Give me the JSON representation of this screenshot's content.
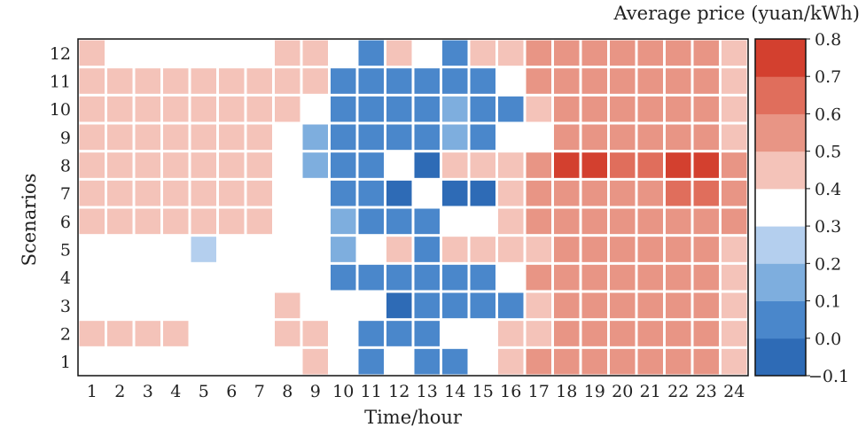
{
  "chart_data": {
    "type": "heatmap",
    "title": "",
    "xlabel": "Time/hour",
    "ylabel": "Scenarios",
    "colorbar_label": "Average price (yuan/kWh)",
    "x_categories": [
      "1",
      "2",
      "3",
      "4",
      "5",
      "6",
      "7",
      "8",
      "9",
      "10",
      "11",
      "12",
      "13",
      "14",
      "15",
      "16",
      "17",
      "18",
      "19",
      "20",
      "21",
      "22",
      "23",
      "24"
    ],
    "y_categories": [
      "12",
      "11",
      "10",
      "9",
      "8",
      "7",
      "6",
      "5",
      "4",
      "3",
      "2",
      "1"
    ],
    "values": [
      [
        0.45,
        0.35,
        0.35,
        0.35,
        0.35,
        0.35,
        0.35,
        0.45,
        0.45,
        0.35,
        0.05,
        0.45,
        0.35,
        0.05,
        0.45,
        0.45,
        0.55,
        0.55,
        0.55,
        0.55,
        0.55,
        0.55,
        0.55,
        0.45
      ],
      [
        0.45,
        0.45,
        0.45,
        0.45,
        0.45,
        0.45,
        0.45,
        0.45,
        0.45,
        0.05,
        0.05,
        0.05,
        0.05,
        0.05,
        0.05,
        0.35,
        0.55,
        0.55,
        0.55,
        0.55,
        0.55,
        0.55,
        0.55,
        0.45
      ],
      [
        0.45,
        0.45,
        0.45,
        0.45,
        0.45,
        0.45,
        0.45,
        0.45,
        0.35,
        0.05,
        0.05,
        0.05,
        0.05,
        0.15,
        0.05,
        0.05,
        0.45,
        0.55,
        0.55,
        0.55,
        0.55,
        0.55,
        0.55,
        0.45
      ],
      [
        0.45,
        0.45,
        0.45,
        0.45,
        0.45,
        0.45,
        0.45,
        0.35,
        0.15,
        0.05,
        0.05,
        0.05,
        0.05,
        0.15,
        0.05,
        0.35,
        0.35,
        0.55,
        0.55,
        0.55,
        0.55,
        0.55,
        0.55,
        0.45
      ],
      [
        0.45,
        0.45,
        0.45,
        0.45,
        0.45,
        0.45,
        0.45,
        0.35,
        0.15,
        0.05,
        0.05,
        0.35,
        -0.05,
        0.45,
        0.45,
        0.45,
        0.55,
        0.75,
        0.75,
        0.65,
        0.65,
        0.75,
        0.75,
        0.55
      ],
      [
        0.45,
        0.45,
        0.45,
        0.45,
        0.45,
        0.45,
        0.45,
        0.35,
        0.35,
        0.05,
        0.05,
        -0.05,
        0.35,
        -0.05,
        -0.05,
        0.45,
        0.55,
        0.55,
        0.55,
        0.55,
        0.55,
        0.65,
        0.65,
        0.55
      ],
      [
        0.45,
        0.45,
        0.45,
        0.45,
        0.45,
        0.45,
        0.45,
        0.35,
        0.35,
        0.15,
        0.05,
        0.05,
        0.05,
        0.35,
        0.35,
        0.45,
        0.55,
        0.55,
        0.55,
        0.55,
        0.55,
        0.55,
        0.55,
        0.55
      ],
      [
        0.35,
        0.35,
        0.35,
        0.35,
        0.25,
        0.35,
        0.35,
        0.35,
        0.35,
        0.15,
        0.35,
        0.45,
        0.05,
        0.45,
        0.45,
        0.45,
        0.45,
        0.55,
        0.55,
        0.55,
        0.55,
        0.55,
        0.55,
        0.45
      ],
      [
        0.35,
        0.35,
        0.35,
        0.35,
        0.35,
        0.35,
        0.35,
        0.35,
        0.35,
        0.05,
        0.05,
        0.05,
        0.05,
        0.05,
        0.05,
        0.35,
        0.55,
        0.55,
        0.55,
        0.55,
        0.55,
        0.55,
        0.55,
        0.45
      ],
      [
        0.35,
        0.35,
        0.35,
        0.35,
        0.35,
        0.35,
        0.35,
        0.45,
        0.35,
        0.35,
        0.35,
        -0.05,
        0.05,
        0.05,
        0.05,
        0.05,
        0.45,
        0.55,
        0.55,
        0.55,
        0.55,
        0.55,
        0.55,
        0.45
      ],
      [
        0.45,
        0.45,
        0.45,
        0.45,
        0.35,
        0.35,
        0.35,
        0.45,
        0.45,
        0.35,
        0.05,
        0.05,
        0.05,
        0.35,
        0.35,
        0.45,
        0.45,
        0.55,
        0.55,
        0.55,
        0.55,
        0.55,
        0.55,
        0.45
      ],
      [
        0.35,
        0.35,
        0.35,
        0.35,
        0.35,
        0.35,
        0.35,
        0.35,
        0.45,
        0.35,
        0.05,
        0.35,
        0.05,
        0.05,
        0.35,
        0.45,
        0.55,
        0.55,
        0.55,
        0.55,
        0.55,
        0.55,
        0.55,
        0.45
      ]
    ],
    "colorbar": {
      "ticks": [
        "0.8",
        "0.7",
        "0.6",
        "0.5",
        "0.4",
        "0.3",
        "0.2",
        "0.1",
        "0.0",
        "−0.1"
      ],
      "range": [
        -0.1,
        0.8
      ],
      "colors": [
        "#2e6bb6",
        "#4a87cb",
        "#7eaede",
        "#b4cfee",
        "#ffffff",
        "#f4c3b9",
        "#e89585",
        "#e06e5c",
        "#d3402f"
      ]
    },
    "legend": "right",
    "grid": true
  }
}
